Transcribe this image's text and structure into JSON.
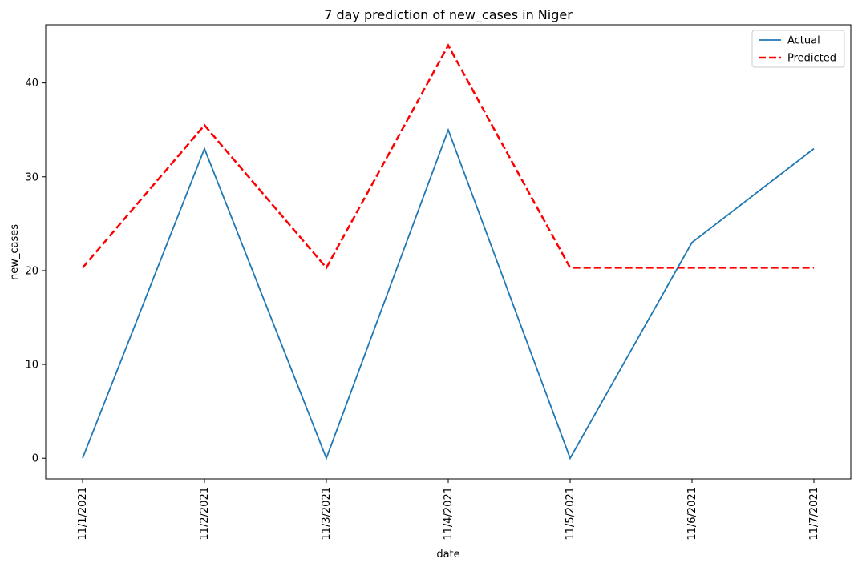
{
  "chart_data": {
    "type": "line",
    "title": "7 day prediction of new_cases in Niger",
    "xlabel": "date",
    "ylabel": "new_cases",
    "categories": [
      "11/1/2021",
      "11/2/2021",
      "11/3/2021",
      "11/4/2021",
      "11/5/2021",
      "11/6/2021",
      "11/7/2021"
    ],
    "ylim": [
      -2.2,
      46.2
    ],
    "y_ticks": [
      0,
      10,
      20,
      30,
      40
    ],
    "y_tick_labels": [
      "0",
      "10",
      "20",
      "30",
      "40"
    ],
    "grid": false,
    "legend_position": "top-right",
    "series": [
      {
        "name": "Actual",
        "color": "#1f77b4",
        "style": "solid",
        "values": [
          0,
          33,
          0,
          35,
          0,
          23,
          33
        ]
      },
      {
        "name": "Predicted",
        "color": "#ff0000",
        "style": "dashed",
        "values": [
          20.3,
          35.5,
          20.3,
          44,
          20.3,
          20.3,
          20.3
        ]
      }
    ]
  }
}
